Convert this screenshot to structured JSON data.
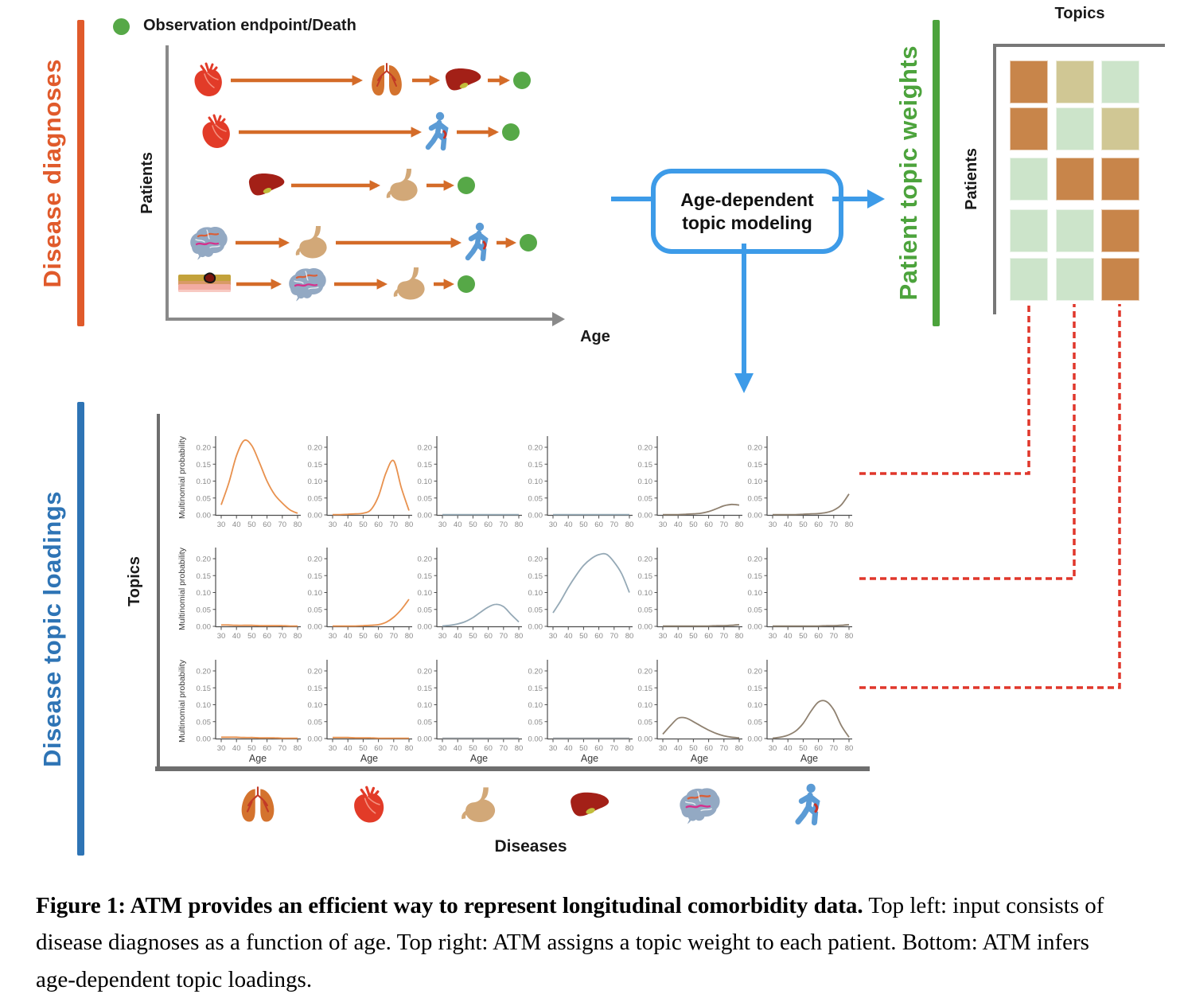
{
  "palette": {
    "disease_diagnoses_accent": "#E05A2B",
    "patient_topic_weights_accent": "#4CA33C",
    "disease_topic_loadings_accent": "#2E74B5",
    "flow_blue": "#3D9BE8",
    "arrow_orange": "#D46B28",
    "endpoint_green": "#56A847",
    "connector_red": "#E0372B",
    "axis_gray": "#8A8A8A"
  },
  "figure": {
    "sections": {
      "top_left": {
        "side_label": "Disease diagnoses",
        "legend_label": "Observation endpoint/Death",
        "y_axis_label": "Patients",
        "x_axis_label": "Age",
        "patients": [
          {
            "sequence": [
              "heart",
              "lungs",
              "liver"
            ]
          },
          {
            "sequence": [
              "heart",
              "person"
            ]
          },
          {
            "sequence": [
              "liver",
              "stomach"
            ]
          },
          {
            "sequence": [
              "brain",
              "stomach",
              "person"
            ]
          },
          {
            "sequence": [
              "skin",
              "brain",
              "stomach"
            ]
          }
        ]
      },
      "process": {
        "box_line1": "Age-dependent",
        "box_line2": "topic modeling"
      },
      "top_right": {
        "side_label": "Patient topic weights",
        "top_axis_label": "Topics",
        "y_axis_label": "Patients",
        "weight_levels": {
          "orange": "high",
          "tan": "medium",
          "green": "low"
        },
        "cell_colors": {
          "orange": "#C8854A",
          "tan": "#D0C794",
          "green": "#CCE4CA"
        },
        "matrix": [
          [
            "orange",
            "tan",
            "green"
          ],
          [
            "orange",
            "green",
            "tan"
          ],
          [
            "green",
            "orange",
            "orange"
          ],
          [
            "green",
            "green",
            "orange"
          ],
          [
            "green",
            "green",
            "orange"
          ]
        ]
      },
      "bottom": {
        "side_label": "Disease topic loadings",
        "y_axis_label": "Topics",
        "x_axis_label": "Diseases",
        "disease_icons": [
          "lungs",
          "heart",
          "stomach",
          "liver",
          "brain",
          "person"
        ]
      }
    },
    "caption_bold": "Figure 1: ATM provides an efficient way to represent longitudinal comorbidity data.",
    "caption_rest": " Top left: input consists of disease diagnoses as a function of age. Top right: ATM assigns a topic weight to each patient. Bottom: ATM infers age-dependent topic loadings."
  },
  "chart_data": {
    "type": "line",
    "layout": "3 topic rows x 6 disease columns of age-dependent loading curves",
    "ylabel": "Multinomial probability",
    "xlabel": "Age",
    "x": [
      30,
      35,
      40,
      45,
      50,
      55,
      60,
      65,
      70,
      75,
      80
    ],
    "xticks": [
      30,
      40,
      50,
      60,
      70,
      80
    ],
    "ytick_labels": [
      "0.00",
      "0.05",
      "0.10",
      "0.15",
      "0.20"
    ],
    "yticks": [
      0,
      0.05,
      0.1,
      0.15,
      0.2
    ],
    "ylim": [
      0,
      0.225
    ],
    "grid": false,
    "charts": [
      {
        "topic": 1,
        "disease": "lungs",
        "color": "#E8914E",
        "values": [
          0.03,
          0.095,
          0.175,
          0.22,
          0.205,
          0.155,
          0.1,
          0.06,
          0.035,
          0.015,
          0.005
        ]
      },
      {
        "topic": 1,
        "disease": "heart",
        "color": "#E8914E",
        "values": [
          0.001,
          0.001,
          0.002,
          0.003,
          0.005,
          0.015,
          0.055,
          0.125,
          0.16,
          0.08,
          0.013
        ]
      },
      {
        "topic": 1,
        "disease": "stomach",
        "color": "#95A9B6",
        "values": [
          0.001,
          0.001,
          0.001,
          0.001,
          0.001,
          0.001,
          0.001,
          0.001,
          0.001,
          0.001,
          0.001
        ]
      },
      {
        "topic": 1,
        "disease": "liver",
        "color": "#95A9B6",
        "values": [
          0.001,
          0.001,
          0.001,
          0.001,
          0.001,
          0.001,
          0.001,
          0.001,
          0.001,
          0.001,
          0.001
        ]
      },
      {
        "topic": 1,
        "disease": "brain",
        "color": "#8F8170",
        "values": [
          0.001,
          0.001,
          0.001,
          0.002,
          0.003,
          0.005,
          0.01,
          0.018,
          0.027,
          0.031,
          0.029
        ]
      },
      {
        "topic": 1,
        "disease": "person",
        "color": "#8F8170",
        "values": [
          0.001,
          0.001,
          0.001,
          0.001,
          0.002,
          0.003,
          0.004,
          0.007,
          0.014,
          0.03,
          0.062
        ]
      },
      {
        "topic": 2,
        "disease": "lungs",
        "color": "#E8914E",
        "values": [
          0.004,
          0.004,
          0.003,
          0.003,
          0.003,
          0.002,
          0.002,
          0.002,
          0.002,
          0.001,
          0.001
        ]
      },
      {
        "topic": 2,
        "disease": "heart",
        "color": "#E8914E",
        "values": [
          0.001,
          0.001,
          0.001,
          0.001,
          0.002,
          0.003,
          0.005,
          0.012,
          0.027,
          0.05,
          0.08
        ]
      },
      {
        "topic": 2,
        "disease": "stomach",
        "color": "#95A9B6",
        "values": [
          0.001,
          0.003,
          0.007,
          0.014,
          0.026,
          0.042,
          0.057,
          0.065,
          0.058,
          0.035,
          0.013
        ]
      },
      {
        "topic": 2,
        "disease": "liver",
        "color": "#95A9B6",
        "values": [
          0.04,
          0.075,
          0.115,
          0.15,
          0.18,
          0.2,
          0.212,
          0.213,
          0.19,
          0.155,
          0.1
        ]
      },
      {
        "topic": 2,
        "disease": "brain",
        "color": "#8F8170",
        "values": [
          0.001,
          0.001,
          0.001,
          0.001,
          0.001,
          0.001,
          0.001,
          0.002,
          0.002,
          0.003,
          0.005
        ]
      },
      {
        "topic": 2,
        "disease": "person",
        "color": "#8F8170",
        "values": [
          0.001,
          0.001,
          0.001,
          0.001,
          0.001,
          0.001,
          0.001,
          0.002,
          0.002,
          0.003,
          0.005
        ]
      },
      {
        "topic": 3,
        "disease": "lungs",
        "color": "#E8914E",
        "values": [
          0.004,
          0.004,
          0.004,
          0.003,
          0.003,
          0.002,
          0.002,
          0.002,
          0.001,
          0.001,
          0.001
        ]
      },
      {
        "topic": 3,
        "disease": "heart",
        "color": "#E8914E",
        "values": [
          0.003,
          0.003,
          0.003,
          0.002,
          0.002,
          0.002,
          0.001,
          0.001,
          0.001,
          0.001,
          0.001
        ]
      },
      {
        "topic": 3,
        "disease": "stomach",
        "color": "#9AA0A4",
        "values": [
          0.001,
          0.001,
          0.001,
          0.001,
          0.001,
          0.001,
          0.001,
          0.001,
          0.001,
          0.001,
          0.001
        ]
      },
      {
        "topic": 3,
        "disease": "liver",
        "color": "#9AA0A4",
        "values": [
          0.001,
          0.001,
          0.001,
          0.001,
          0.001,
          0.001,
          0.001,
          0.001,
          0.001,
          0.001,
          0.001
        ]
      },
      {
        "topic": 3,
        "disease": "brain",
        "color": "#8F8170",
        "values": [
          0.013,
          0.038,
          0.06,
          0.061,
          0.05,
          0.037,
          0.025,
          0.015,
          0.008,
          0.004,
          0.002
        ]
      },
      {
        "topic": 3,
        "disease": "person",
        "color": "#8F8170",
        "values": [
          0.001,
          0.004,
          0.01,
          0.022,
          0.045,
          0.08,
          0.108,
          0.11,
          0.085,
          0.038,
          0.004
        ]
      }
    ]
  }
}
